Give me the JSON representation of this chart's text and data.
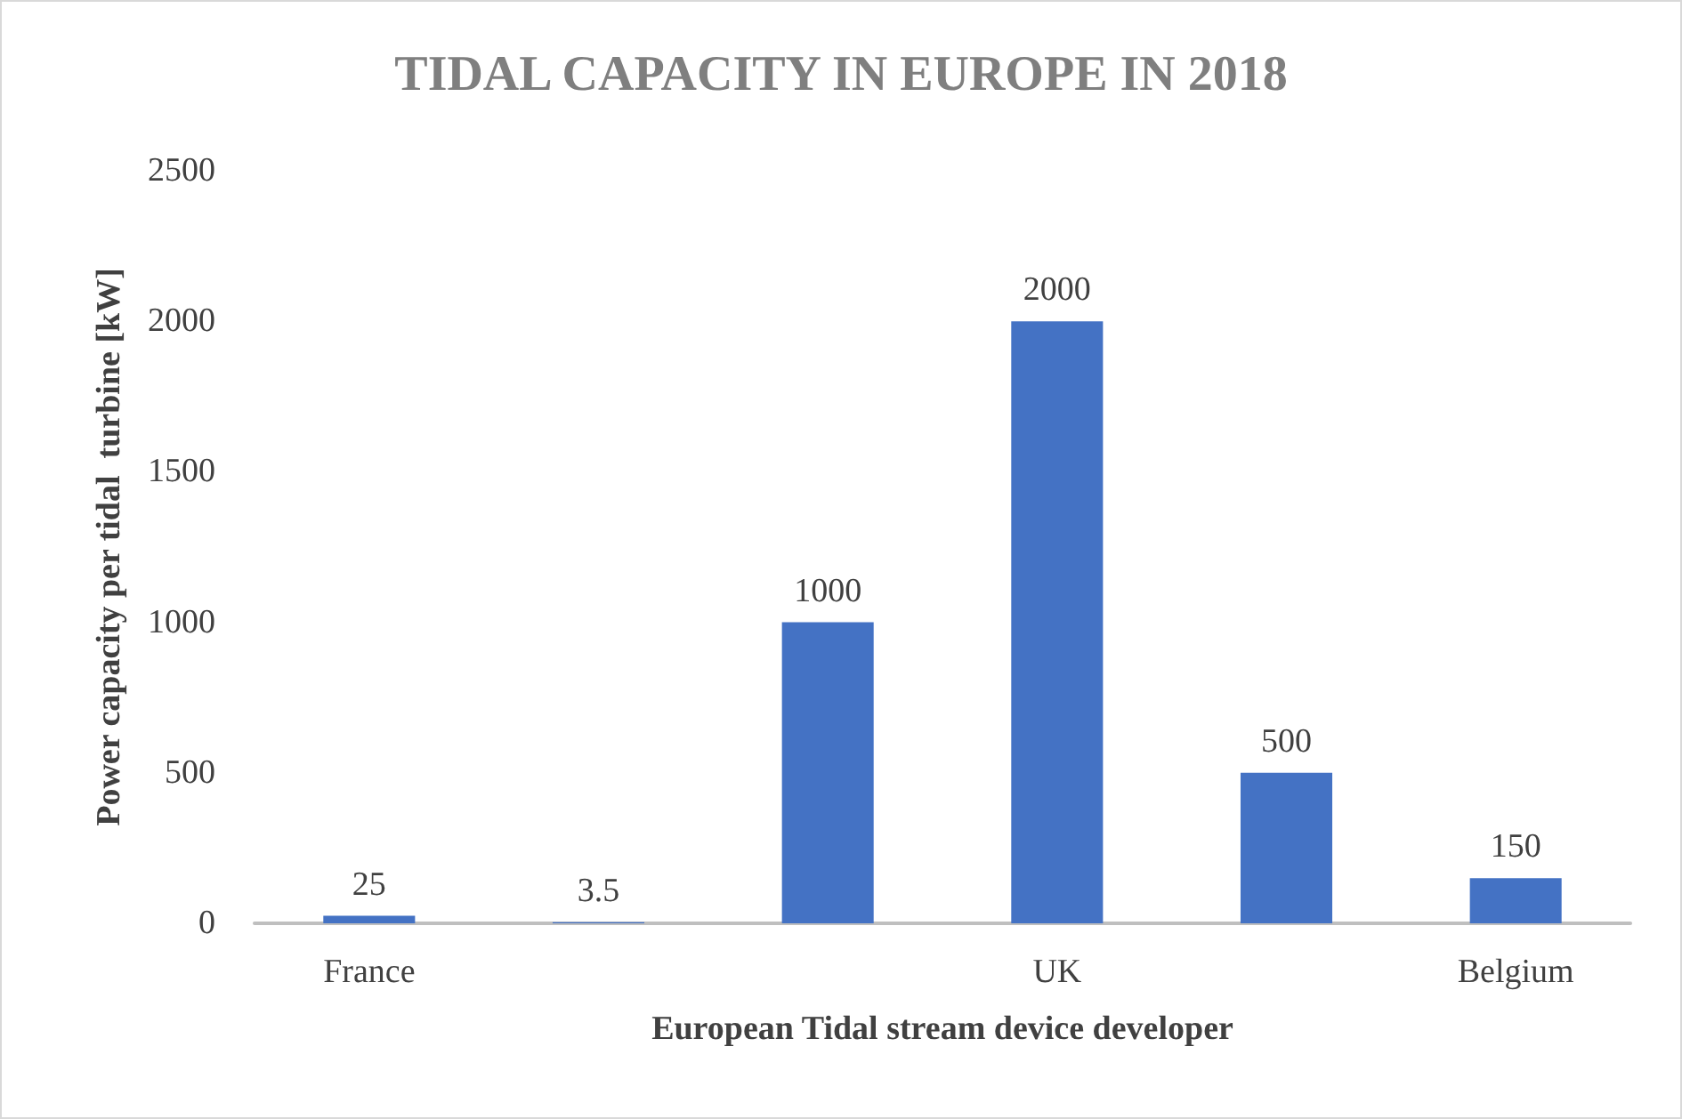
{
  "chart_data": {
    "type": "bar",
    "title": "TIDAL CAPACITY IN EUROPE IN 2018",
    "xlabel": "European Tidal stream device developer",
    "ylabel": "Power capacity per tidal  turbine [kW]",
    "categories": [
      "France",
      null,
      null,
      "UK",
      null,
      "Belgium"
    ],
    "values": [
      25,
      3.5,
      1000,
      2000,
      500,
      150
    ],
    "color": "#4472c4",
    "ylim": [
      0,
      2500
    ],
    "yticks": [
      0,
      500,
      1000,
      1500,
      2000,
      2500
    ],
    "grid": false,
    "data_labels": true
  }
}
